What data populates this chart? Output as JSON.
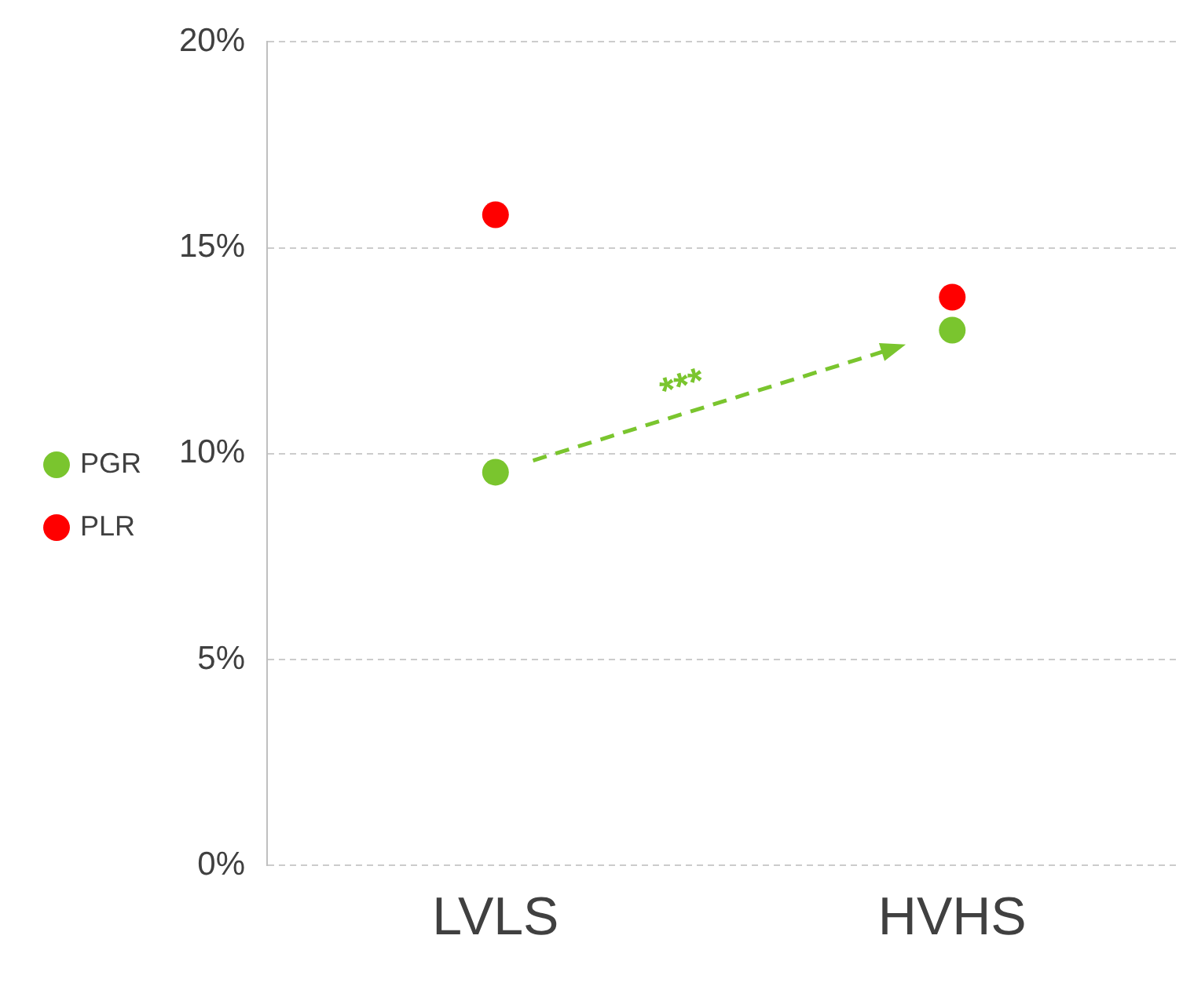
{
  "chart_data": {
    "type": "scatter",
    "categories": [
      "LVLS",
      "HVHS"
    ],
    "series": [
      {
        "name": "PGR",
        "color": "#7ac52e",
        "values": [
          9.55,
          13.0
        ]
      },
      {
        "name": "PLR",
        "color": "#ff0000",
        "values": [
          15.8,
          13.8
        ]
      }
    ],
    "ylim": [
      0,
      20
    ],
    "yticks": [
      {
        "value": 0,
        "label": "0%"
      },
      {
        "value": 5,
        "label": "5%"
      },
      {
        "value": 10,
        "label": "10%"
      },
      {
        "value": 15,
        "label": "15%"
      },
      {
        "value": 20,
        "label": "20%"
      }
    ],
    "grid": "y",
    "legend": "left",
    "marker": "circle",
    "annotations": [
      "***"
    ]
  }
}
